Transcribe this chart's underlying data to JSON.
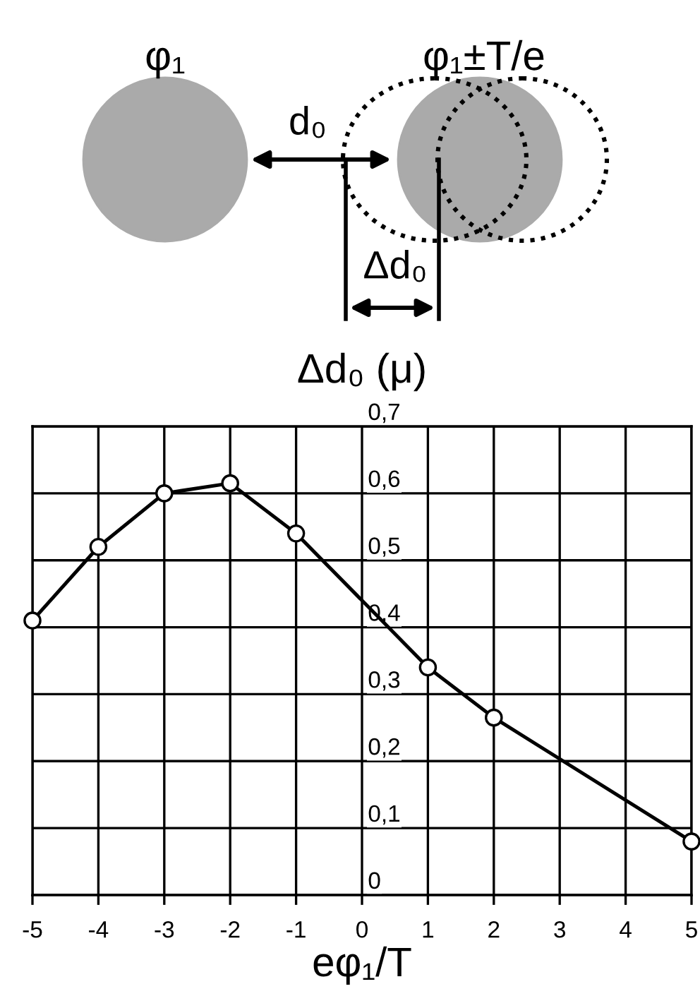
{
  "chart_data": {
    "type": "line",
    "ylabel": "Δd₀ (μ)",
    "xlabel": "eφ₁/T",
    "annotations": [
      "φ₁",
      "φ₁±T/e",
      "d₀",
      "Δd₀"
    ],
    "series": [
      {
        "color": "#000000",
        "x": [
          -5,
          -4,
          -3,
          -2,
          -1,
          1,
          2,
          5
        ],
        "values": [
          0.41,
          0.52,
          0.6,
          0.615,
          0.54,
          0.34,
          0.265,
          0.08
        ]
      }
    ],
    "xlim": [
      -5,
      5
    ],
    "xticks": [
      -5,
      -4,
      -3,
      -2,
      -1,
      0,
      1,
      2,
      3,
      4,
      5
    ],
    "ylim": [
      0,
      0.7
    ],
    "yticks": [
      {
        "value": 0,
        "label": "0"
      },
      {
        "value": 0.1,
        "label": "0,1"
      },
      {
        "value": 0.2,
        "label": "0,2"
      },
      {
        "value": 0.3,
        "label": "0,3"
      },
      {
        "value": 0.4,
        "label": "0,4"
      },
      {
        "value": 0.5,
        "label": "0,5"
      },
      {
        "value": 0.6,
        "label": "0,6"
      },
      {
        "value": 0.7,
        "label": "0,7"
      }
    ],
    "grid": true,
    "marker": "circle",
    "line_style": "solid"
  }
}
